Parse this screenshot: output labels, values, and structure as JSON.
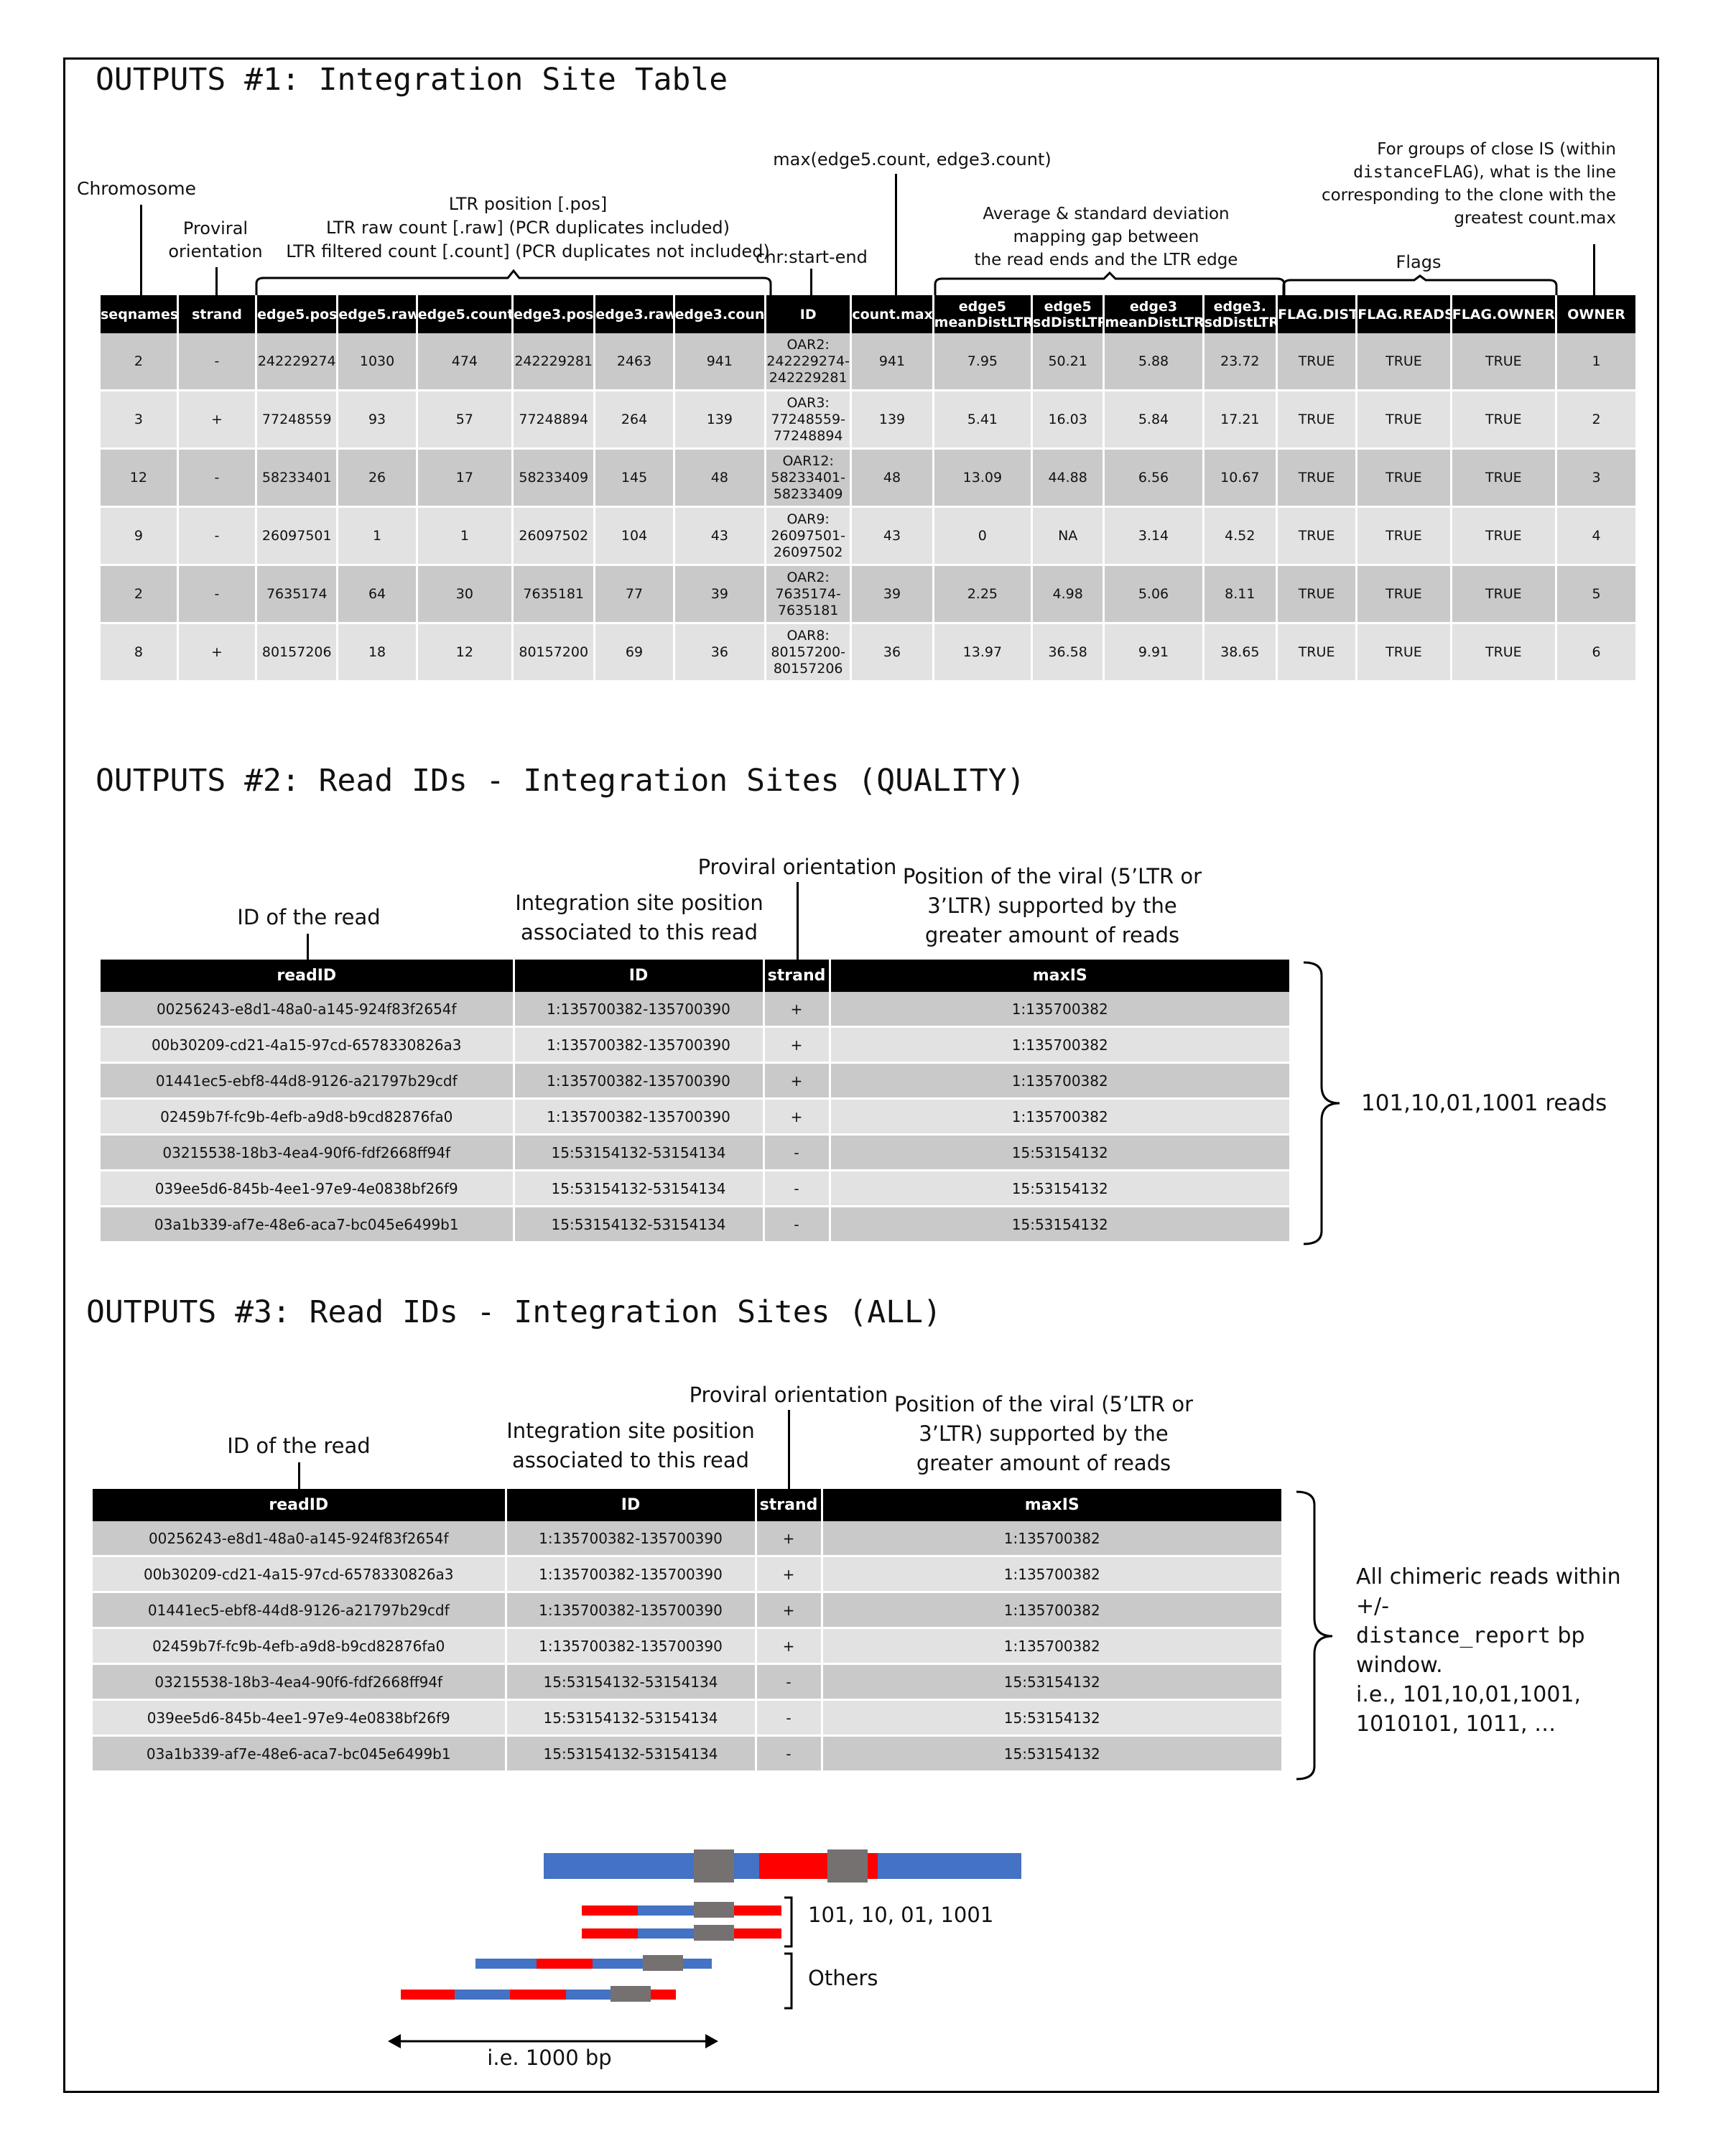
{
  "section1": {
    "heading": "OUTPUTS #1: Integration Site Table",
    "annotations": {
      "chromosome": "Chromosome",
      "proviral": [
        "Proviral",
        "orientation"
      ],
      "ltr": [
        "LTR position [.pos]",
        "LTR raw count [.raw] (PCR duplicates included)",
        "LTR filtered count [.count] (PCR duplicates not included)"
      ],
      "id": "chr:start-end",
      "countmax": "max(edge5.count, edge3.count)",
      "dist": [
        "Average & standard deviation",
        "mapping gap between",
        "the read ends and the LTR edge"
      ],
      "flags": "Flags",
      "owner_pre": "For groups of close IS (within",
      "owner_code": "distanceFLAG",
      "owner_post": "), what is the line",
      "owner_rest": [
        "corresponding to the clone with the",
        "greatest count.max"
      ]
    },
    "columns": [
      "seqnames",
      "strand",
      "edge5.pos",
      "edge5.raw",
      "edge5.count",
      "edge3.pos",
      "edge3.raw",
      "edge3.count",
      "ID",
      "count.max",
      [
        "edge5",
        "meanDistLTR"
      ],
      [
        "edge5",
        "sdDistLTR"
      ],
      [
        "edge3",
        "meanDistLTR"
      ],
      [
        "edge3.",
        "sdDistLTR"
      ],
      "FLAG.DIST",
      "FLAG.READS",
      "FLAG.OWNER",
      "OWNER"
    ],
    "rows": [
      [
        "2",
        "-",
        "242229274",
        "1030",
        "474",
        "242229281",
        "2463",
        "941",
        [
          "OAR2:",
          "242229274-",
          "242229281"
        ],
        "941",
        "7.95",
        "50.21",
        "5.88",
        "23.72",
        "TRUE",
        "TRUE",
        "TRUE",
        "1"
      ],
      [
        "3",
        "+",
        "77248559",
        "93",
        "57",
        "77248894",
        "264",
        "139",
        [
          "OAR3:",
          "77248559-",
          "77248894"
        ],
        "139",
        "5.41",
        "16.03",
        "5.84",
        "17.21",
        "TRUE",
        "TRUE",
        "TRUE",
        "2"
      ],
      [
        "12",
        "-",
        "58233401",
        "26",
        "17",
        "58233409",
        "145",
        "48",
        [
          "OAR12:",
          "58233401-",
          "58233409"
        ],
        "48",
        "13.09",
        "44.88",
        "6.56",
        "10.67",
        "TRUE",
        "TRUE",
        "TRUE",
        "3"
      ],
      [
        "9",
        "-",
        "26097501",
        "1",
        "1",
        "26097502",
        "104",
        "43",
        [
          "OAR9:",
          "26097501-",
          "26097502"
        ],
        "43",
        "0",
        "NA",
        "3.14",
        "4.52",
        "TRUE",
        "TRUE",
        "TRUE",
        "4"
      ],
      [
        "2",
        "-",
        "7635174",
        "64",
        "30",
        "7635181",
        "77",
        "39",
        [
          "OAR2:",
          "7635174-",
          "7635181"
        ],
        "39",
        "2.25",
        "4.98",
        "5.06",
        "8.11",
        "TRUE",
        "TRUE",
        "TRUE",
        "5"
      ],
      [
        "8",
        "+",
        "80157206",
        "18",
        "12",
        "80157200",
        "69",
        "36",
        [
          "OAR8:",
          "80157200-",
          "80157206"
        ],
        "36",
        "13.97",
        "36.58",
        "9.91",
        "38.65",
        "TRUE",
        "TRUE",
        "TRUE",
        "6"
      ]
    ]
  },
  "section2": {
    "heading": "OUTPUTS #2: Read IDs - Integration Sites (QUALITY)",
    "annotations": {
      "readid": "ID of the read",
      "isposition": [
        "Integration site position",
        "associated to this read"
      ],
      "proviral": "Proviral orientation",
      "maxis": [
        "Position of the viral (5’LTR or",
        "3’LTR) supported by the",
        "greater amount of reads"
      ]
    },
    "brace_label": "101,10,01,1001 reads",
    "columns": [
      "readID",
      "ID",
      "strand",
      "maxIS"
    ],
    "rows": [
      [
        "00256243-e8d1-48a0-a145-924f83f2654f",
        "1:135700382-135700390",
        "+",
        "1:135700382"
      ],
      [
        "00b30209-cd21-4a15-97cd-6578330826a3",
        "1:135700382-135700390",
        "+",
        "1:135700382"
      ],
      [
        "01441ec5-ebf8-44d8-9126-a21797b29cdf",
        "1:135700382-135700390",
        "+",
        "1:135700382"
      ],
      [
        "02459b7f-fc9b-4efb-a9d8-b9cd82876fa0",
        "1:135700382-135700390",
        "+",
        "1:135700382"
      ],
      [
        "03215538-18b3-4ea4-90f6-fdf2668ff94f",
        "15:53154132-53154134",
        "-",
        "15:53154132"
      ],
      [
        "039ee5d6-845b-4ee1-97e9-4e0838bf26f9",
        "15:53154132-53154134",
        "-",
        "15:53154132"
      ],
      [
        "03a1b339-af7e-48e6-aca7-bc045e6499b1",
        "15:53154132-53154134",
        "-",
        "15:53154132"
      ]
    ]
  },
  "section3": {
    "heading": "OUTPUTS #3: Read IDs - Integration Sites (ALL)",
    "annotations": {
      "readid": "ID of the read",
      "isposition": [
        "Integration site position",
        "associated to this read"
      ],
      "proviral": "Proviral orientation",
      "maxis": [
        "Position of the viral (5’LTR or",
        "3’LTR) supported by the",
        "greater amount of reads"
      ]
    },
    "brace_label": {
      "line1": "All chimeric reads within +/-",
      "code": "distance_report",
      "bp": " bp",
      "line3": "window.",
      "line4": "i.e., 101,10,01,1001,",
      "line5": "1010101, 1011, …"
    },
    "columns": [
      "readID",
      "ID",
      "strand",
      "maxIS"
    ],
    "rows": [
      [
        "00256243-e8d1-48a0-a145-924f83f2654f",
        "1:135700382-135700390",
        "+",
        "1:135700382"
      ],
      [
        "00b30209-cd21-4a15-97cd-6578330826a3",
        "1:135700382-135700390",
        "+",
        "1:135700382"
      ],
      [
        "01441ec5-ebf8-44d8-9126-a21797b29cdf",
        "1:135700382-135700390",
        "+",
        "1:135700382"
      ],
      [
        "02459b7f-fc9b-4efb-a9d8-b9cd82876fa0",
        "1:135700382-135700390",
        "+",
        "1:135700382"
      ],
      [
        "03215538-18b3-4ea4-90f6-fdf2668ff94f",
        "15:53154132-53154134",
        "-",
        "15:53154132"
      ],
      [
        "039ee5d6-845b-4ee1-97e9-4e0838bf26f9",
        "15:53154132-53154134",
        "-",
        "15:53154132"
      ],
      [
        "03a1b339-af7e-48e6-aca7-bc045e6499b1",
        "15:53154132-53154134",
        "-",
        "15:53154132"
      ]
    ]
  },
  "diagram": {
    "label_101": "101, 10, 01, 1001",
    "label_others": "Others",
    "label_window": "i.e. 1000 bp",
    "colors": {
      "blue": "#4472c4",
      "red": "#ff0000",
      "gray": "#767171"
    }
  }
}
